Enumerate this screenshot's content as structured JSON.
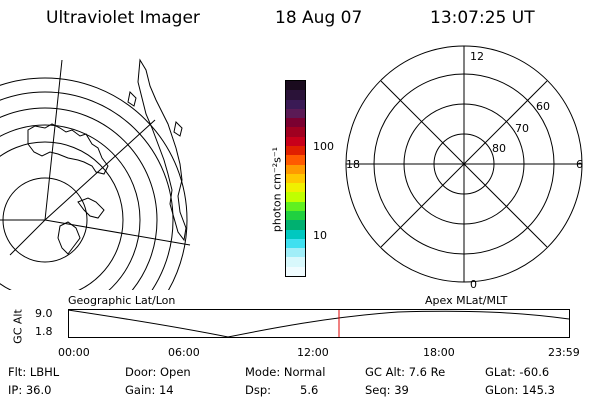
{
  "header": {
    "title": "Ultraviolet Imager",
    "date": "18 Aug 07",
    "time": "13:07:25 UT"
  },
  "left_panel_label": "Geographic Lat/Lon",
  "right_panel_label": "Apex MLat/MLT",
  "colorbar": {
    "unit_label": "photon cm⁻²s⁻¹",
    "ticks": [
      "100",
      "10"
    ],
    "colors": [
      "#1a0b1e",
      "#2a1238",
      "#3a1a55",
      "#5a1a55",
      "#7a0030",
      "#a00020",
      "#c8001a",
      "#e02000",
      "#ff5a00",
      "#ff9a00",
      "#ffc800",
      "#f0f000",
      "#c0ff00",
      "#60f020",
      "#20d040",
      "#00b070",
      "#00c8c0",
      "#40e0f0",
      "#a0eef8",
      "#d8f8fc",
      "#f0fcff"
    ]
  },
  "polar_labels": {
    "top": "12",
    "bottom": "0",
    "left": "18",
    "right": "6",
    "lat60": "60",
    "lat70": "70",
    "lat80": "80"
  },
  "timeline": {
    "ylabel": "GC Alt",
    "y_top": "9.0",
    "y_bottom": "1.8",
    "ticks": [
      "00:00",
      "06:00",
      "12:00",
      "18:00",
      "23:59"
    ]
  },
  "info": {
    "filter": "Flt: LBHL",
    "ip": "IP: 36.0",
    "door": "Door: Open",
    "gain": "Gain: 14",
    "mode": "Mode: Normal",
    "dsp_label": "Dsp:",
    "dsp_value": "5.6",
    "gc_alt": "GC Alt: 7.6 Re",
    "seq": "Seq: 39",
    "glat": "GLat: -60.6",
    "glon": "GLon: 145.3"
  }
}
